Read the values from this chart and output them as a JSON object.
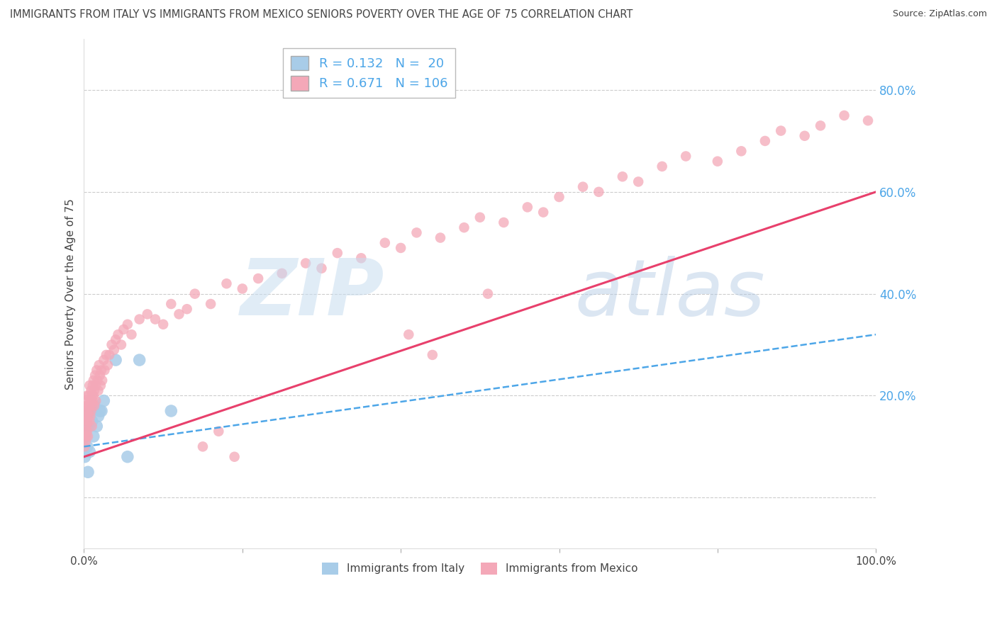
{
  "title": "IMMIGRANTS FROM ITALY VS IMMIGRANTS FROM MEXICO SENIORS POVERTY OVER THE AGE OF 75 CORRELATION CHART",
  "source": "Source: ZipAtlas.com",
  "ylabel": "Seniors Poverty Over the Age of 75",
  "italy_R": 0.132,
  "italy_N": 20,
  "mexico_R": 0.671,
  "mexico_N": 106,
  "italy_color": "#a8cce8",
  "mexico_color": "#f4a8b8",
  "italy_line_color": "#4da6e8",
  "mexico_line_color": "#e8406c",
  "background_color": "#ffffff",
  "grid_color": "#cccccc",
  "ytick_color": "#4da6e8",
  "title_color": "#444444",
  "label_color": "#444444",
  "xlim": [
    0.0,
    1.0
  ],
  "ylim_min": -0.1,
  "ylim_max": 0.9,
  "yticks": [
    0.0,
    0.2,
    0.4,
    0.6,
    0.8
  ],
  "ytick_labels": [
    "",
    "20.0%",
    "40.0%",
    "60.0%",
    "80.0%"
  ],
  "xtick_labels_show": [
    "0.0%",
    "100.0%"
  ],
  "italy_scatter_x": [
    0.001,
    0.002,
    0.003,
    0.004,
    0.005,
    0.006,
    0.007,
    0.009,
    0.01,
    0.012,
    0.013,
    0.016,
    0.018,
    0.02,
    0.022,
    0.025,
    0.04,
    0.055,
    0.07,
    0.11
  ],
  "italy_scatter_y": [
    0.08,
    0.12,
    0.16,
    0.1,
    0.05,
    0.14,
    0.09,
    0.17,
    0.15,
    0.12,
    0.18,
    0.14,
    0.16,
    0.17,
    0.17,
    0.19,
    0.27,
    0.08,
    0.27,
    0.17
  ],
  "mexico_scatter_x": [
    0.001,
    0.001,
    0.001,
    0.002,
    0.002,
    0.002,
    0.002,
    0.003,
    0.003,
    0.003,
    0.003,
    0.004,
    0.004,
    0.004,
    0.005,
    0.005,
    0.005,
    0.006,
    0.006,
    0.007,
    0.007,
    0.007,
    0.008,
    0.008,
    0.009,
    0.009,
    0.01,
    0.01,
    0.01,
    0.011,
    0.011,
    0.012,
    0.012,
    0.013,
    0.013,
    0.014,
    0.015,
    0.015,
    0.016,
    0.017,
    0.018,
    0.019,
    0.02,
    0.021,
    0.022,
    0.023,
    0.025,
    0.026,
    0.028,
    0.03,
    0.032,
    0.035,
    0.038,
    0.04,
    0.043,
    0.047,
    0.05,
    0.055,
    0.06,
    0.07,
    0.08,
    0.09,
    0.1,
    0.11,
    0.12,
    0.13,
    0.14,
    0.16,
    0.18,
    0.2,
    0.22,
    0.25,
    0.28,
    0.3,
    0.32,
    0.35,
    0.38,
    0.4,
    0.42,
    0.45,
    0.48,
    0.5,
    0.53,
    0.56,
    0.58,
    0.6,
    0.63,
    0.65,
    0.68,
    0.7,
    0.73,
    0.76,
    0.8,
    0.83,
    0.86,
    0.88,
    0.91,
    0.93,
    0.96,
    0.99,
    0.15,
    0.17,
    0.19,
    0.41,
    0.44,
    0.51
  ],
  "mexico_scatter_y": [
    0.12,
    0.15,
    0.1,
    0.13,
    0.16,
    0.11,
    0.18,
    0.14,
    0.17,
    0.12,
    0.19,
    0.15,
    0.13,
    0.2,
    0.16,
    0.18,
    0.12,
    0.17,
    0.2,
    0.15,
    0.18,
    0.22,
    0.16,
    0.19,
    0.17,
    0.21,
    0.18,
    0.2,
    0.14,
    0.22,
    0.19,
    0.2,
    0.23,
    0.21,
    0.18,
    0.24,
    0.22,
    0.19,
    0.25,
    0.23,
    0.21,
    0.26,
    0.24,
    0.22,
    0.25,
    0.23,
    0.27,
    0.25,
    0.28,
    0.26,
    0.28,
    0.3,
    0.29,
    0.31,
    0.32,
    0.3,
    0.33,
    0.34,
    0.32,
    0.35,
    0.36,
    0.35,
    0.34,
    0.38,
    0.36,
    0.37,
    0.4,
    0.38,
    0.42,
    0.41,
    0.43,
    0.44,
    0.46,
    0.45,
    0.48,
    0.47,
    0.5,
    0.49,
    0.52,
    0.51,
    0.53,
    0.55,
    0.54,
    0.57,
    0.56,
    0.59,
    0.61,
    0.6,
    0.63,
    0.62,
    0.65,
    0.67,
    0.66,
    0.68,
    0.7,
    0.72,
    0.71,
    0.73,
    0.75,
    0.74,
    0.1,
    0.13,
    0.08,
    0.32,
    0.28,
    0.4
  ],
  "mexico_line_x0": 0.0,
  "mexico_line_y0": 0.08,
  "mexico_line_x1": 1.0,
  "mexico_line_y1": 0.6,
  "italy_line_x0": 0.0,
  "italy_line_y0": 0.1,
  "italy_line_x1": 1.0,
  "italy_line_y1": 0.32
}
